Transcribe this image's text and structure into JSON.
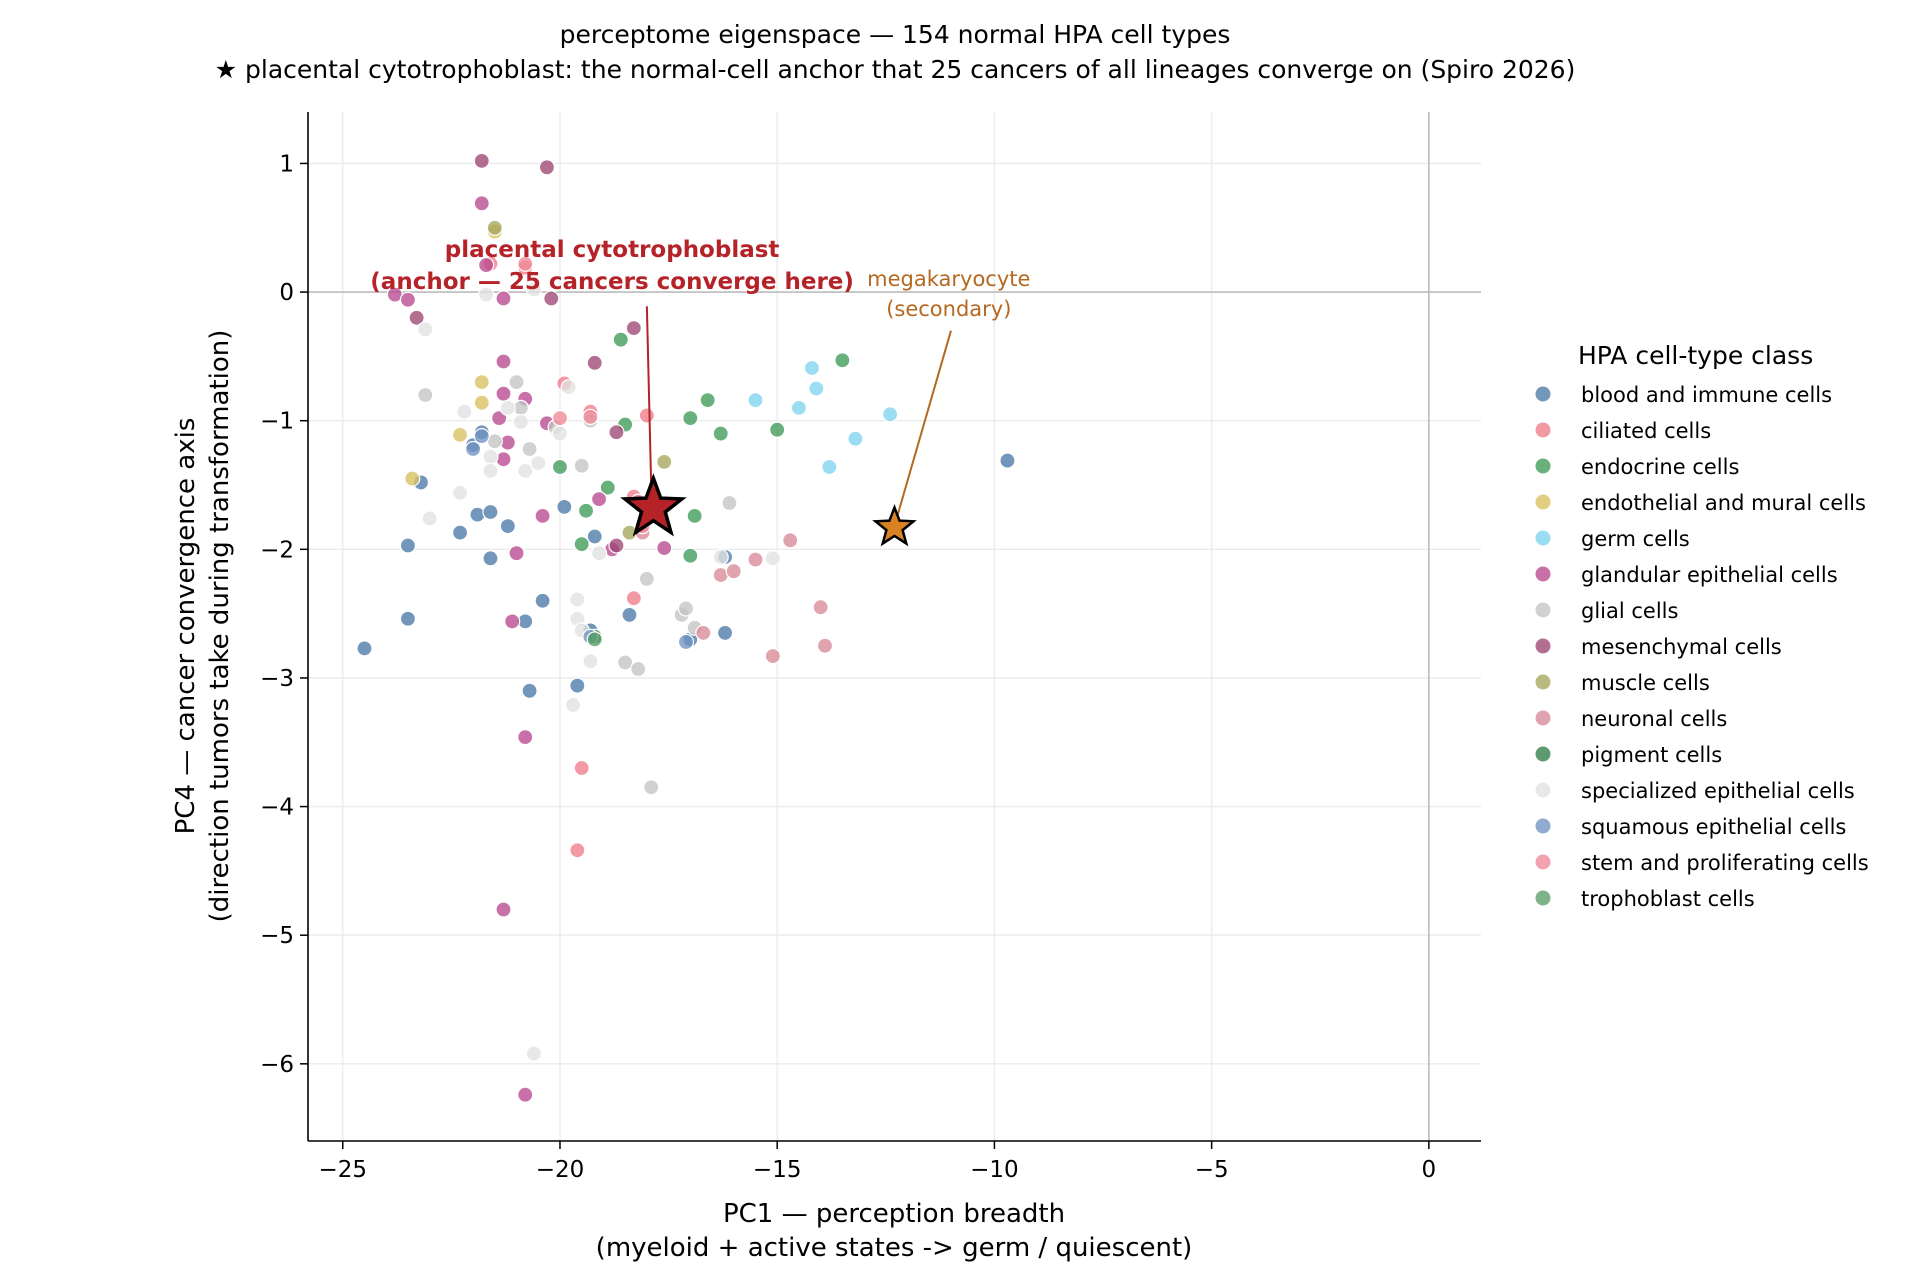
{
  "chart_data": {
    "type": "scatter",
    "title": "perceptome eigenspace — 154 normal HPA cell types",
    "subtitle": "★ placental cytotrophoblast: the normal-cell anchor that 25 cancers of all lineages converge on (Spiro 2026)",
    "xlabel": "PC1 — perception breadth",
    "xlabel2": "(myeloid + active states -> germ / quiescent)",
    "ylabel": "PC4 — cancer convergence axis",
    "ylabel2": "(direction tumors take during transformation)",
    "xlim": [
      -25.8,
      1.2
    ],
    "ylim": [
      -6.6,
      1.4
    ],
    "xticks": [
      -25,
      -20,
      -15,
      -10,
      -5,
      0
    ],
    "yticks": [
      -6,
      -5,
      -4,
      -3,
      -2,
      -1,
      0,
      1
    ],
    "xtick_labels": [
      "−25",
      "−20",
      "−15",
      "−10",
      "−5",
      "0"
    ],
    "ytick_labels": [
      "−6",
      "−5",
      "−4",
      "−3",
      "−2",
      "−1",
      "0",
      "1"
    ],
    "grid": true,
    "reference_lines": {
      "x": 0,
      "y": 0
    },
    "legend_title": "HPA cell-type class",
    "legend_position": "right",
    "series": [
      {
        "name": "blood and immune cells",
        "color": "#4c78a8",
        "points": [
          [
            -24.5,
            -2.77
          ],
          [
            -23.5,
            -1.97
          ],
          [
            -23.5,
            -2.54
          ],
          [
            -23.2,
            -1.48
          ],
          [
            -22.3,
            -1.87
          ],
          [
            -22.0,
            -1.19
          ],
          [
            -21.8,
            -1.09
          ],
          [
            -21.9,
            -1.73
          ],
          [
            -21.6,
            -1.71
          ],
          [
            -21.6,
            -2.07
          ],
          [
            -21.2,
            -1.82
          ],
          [
            -20.8,
            -2.56
          ],
          [
            -20.7,
            -3.1
          ],
          [
            -20.4,
            -2.4
          ],
          [
            -19.9,
            -1.67
          ],
          [
            -19.6,
            -3.06
          ],
          [
            -19.2,
            -1.9
          ],
          [
            -19.3,
            -2.63
          ],
          [
            -18.4,
            -2.51
          ],
          [
            -17.0,
            -2.7
          ],
          [
            -16.2,
            -2.65
          ],
          [
            -16.2,
            -2.06
          ],
          [
            -9.7,
            -1.31
          ]
        ]
      },
      {
        "name": "ciliated cells",
        "color": "#f07c8a",
        "points": [
          [
            -21.6,
            0.22
          ],
          [
            -20.8,
            0.19
          ],
          [
            -19.9,
            -0.71
          ],
          [
            -19.3,
            -0.93
          ],
          [
            -18.0,
            -0.96
          ],
          [
            -18.3,
            -1.59
          ],
          [
            -18.3,
            -2.38
          ],
          [
            -19.5,
            -3.7
          ],
          [
            -19.6,
            -4.34
          ]
        ]
      },
      {
        "name": "endocrine cells",
        "color": "#3d9a57",
        "points": [
          [
            -18.6,
            -0.37
          ],
          [
            -18.5,
            -1.03
          ],
          [
            -17.0,
            -0.98
          ],
          [
            -16.6,
            -0.84
          ],
          [
            -16.3,
            -1.1
          ],
          [
            -15.0,
            -1.07
          ],
          [
            -13.5,
            -0.53
          ],
          [
            -16.9,
            -1.74
          ],
          [
            -19.4,
            -1.7
          ],
          [
            -20.0,
            -1.36
          ],
          [
            -18.9,
            -1.52
          ],
          [
            -17.0,
            -2.05
          ],
          [
            -19.5,
            -1.96
          ]
        ]
      },
      {
        "name": "endothelial and mural cells",
        "color": "#d9c060",
        "points": [
          [
            -21.8,
            -0.7
          ],
          [
            -21.8,
            -0.86
          ],
          [
            -22.3,
            -1.11
          ],
          [
            -23.4,
            -1.45
          ],
          [
            -21.5,
            0.47
          ]
        ]
      },
      {
        "name": "germ cells",
        "color": "#7fd3f0",
        "points": [
          [
            -15.5,
            -0.84
          ],
          [
            -14.5,
            -0.9
          ],
          [
            -14.2,
            -0.59
          ],
          [
            -14.1,
            -0.75
          ],
          [
            -13.8,
            -1.36
          ],
          [
            -13.2,
            -1.14
          ],
          [
            -12.4,
            -0.95
          ]
        ]
      },
      {
        "name": "glandular epithelial cells",
        "color": "#b8498f",
        "points": [
          [
            -21.8,
            0.69
          ],
          [
            -21.7,
            0.21
          ],
          [
            -23.8,
            -0.02
          ],
          [
            -23.5,
            -0.06
          ],
          [
            -21.3,
            -0.05
          ],
          [
            -21.3,
            -0.54
          ],
          [
            -21.3,
            -0.79
          ],
          [
            -21.2,
            -1.17
          ],
          [
            -21.3,
            -1.3
          ],
          [
            -20.8,
            -0.83
          ],
          [
            -20.3,
            -1.02
          ],
          [
            -21.4,
            -0.98
          ],
          [
            -20.4,
            -1.74
          ],
          [
            -21.0,
            -2.03
          ],
          [
            -21.1,
            -2.56
          ],
          [
            -19.1,
            -1.61
          ],
          [
            -18.8,
            -2.0
          ],
          [
            -17.6,
            -1.99
          ],
          [
            -20.8,
            -3.46
          ],
          [
            -21.3,
            -4.8
          ],
          [
            -20.8,
            -6.24
          ]
        ]
      },
      {
        "name": "glial cells",
        "color": "#c4c4c4",
        "points": [
          [
            -23.1,
            -0.8
          ],
          [
            -21.0,
            -0.7
          ],
          [
            -20.9,
            -0.9
          ],
          [
            -20.7,
            -1.22
          ],
          [
            -21.5,
            -1.16
          ],
          [
            -20.1,
            -1.05
          ],
          [
            -19.3,
            -1.0
          ],
          [
            -19.5,
            -1.35
          ],
          [
            -18.0,
            -2.23
          ],
          [
            -18.5,
            -2.88
          ],
          [
            -18.2,
            -2.93
          ],
          [
            -17.2,
            -2.51
          ],
          [
            -17.1,
            -2.46
          ],
          [
            -16.9,
            -2.61
          ],
          [
            -16.1,
            -1.64
          ],
          [
            -17.9,
            -3.85
          ]
        ]
      },
      {
        "name": "mesenchymal cells",
        "color": "#9e4773",
        "points": [
          [
            -21.8,
            1.02
          ],
          [
            -20.3,
            0.97
          ],
          [
            -23.3,
            -0.2
          ],
          [
            -20.2,
            -0.05
          ],
          [
            -18.3,
            -0.28
          ],
          [
            -19.2,
            -0.55
          ],
          [
            -18.7,
            -1.09
          ],
          [
            -18.7,
            -1.97
          ]
        ]
      },
      {
        "name": "muscle cells",
        "color": "#a7a55c",
        "points": [
          [
            -21.5,
            0.5
          ],
          [
            -17.6,
            -1.32
          ],
          [
            -18.4,
            -1.87
          ]
        ]
      },
      {
        "name": "neuronal cells",
        "color": "#d98a98",
        "points": [
          [
            -16.3,
            -2.2
          ],
          [
            -16.0,
            -2.17
          ],
          [
            -15.5,
            -2.08
          ],
          [
            -14.7,
            -1.93
          ],
          [
            -14.0,
            -2.45
          ],
          [
            -13.9,
            -2.75
          ],
          [
            -15.1,
            -2.83
          ],
          [
            -16.7,
            -2.65
          ],
          [
            -18.1,
            -1.87
          ]
        ]
      },
      {
        "name": "pigment cells",
        "color": "#2e7d48",
        "points": [
          [
            -19.2,
            -2.68
          ]
        ]
      },
      {
        "name": "specialized epithelial cells",
        "color": "#e2e2e2",
        "points": [
          [
            -21.7,
            -0.02
          ],
          [
            -20.6,
            0.02
          ],
          [
            -23.1,
            -0.29
          ],
          [
            -22.2,
            -0.93
          ],
          [
            -21.6,
            -1.28
          ],
          [
            -21.6,
            -1.39
          ],
          [
            -22.3,
            -1.56
          ],
          [
            -23.0,
            -1.76
          ],
          [
            -20.8,
            -1.39
          ],
          [
            -20.5,
            -1.33
          ],
          [
            -19.6,
            -2.39
          ],
          [
            -19.6,
            -2.54
          ],
          [
            -19.5,
            -2.63
          ],
          [
            -19.3,
            -2.87
          ],
          [
            -19.1,
            -2.03
          ],
          [
            -19.7,
            -3.21
          ],
          [
            -20.6,
            -5.92
          ],
          [
            -15.1,
            -2.07
          ],
          [
            -16.3,
            -2.06
          ],
          [
            -19.8,
            -0.74
          ],
          [
            -20.0,
            -1.1
          ],
          [
            -20.9,
            -1.01
          ],
          [
            -21.2,
            -0.9
          ]
        ]
      },
      {
        "name": "squamous epithelial cells",
        "color": "#6f93c0",
        "points": [
          [
            -21.8,
            -1.12
          ],
          [
            -22.0,
            -1.22
          ],
          [
            -19.3,
            -2.68
          ],
          [
            -17.1,
            -2.72
          ]
        ]
      },
      {
        "name": "stem and proliferating cells",
        "color": "#f08898",
        "points": [
          [
            -20.8,
            0.22
          ],
          [
            -20.0,
            -0.98
          ],
          [
            -18.2,
            -1.63
          ],
          [
            -18.1,
            -1.82
          ],
          [
            -19.3,
            -0.97
          ]
        ]
      },
      {
        "name": "trophoblast cells",
        "color": "#5a9e68",
        "points": [
          [
            -19.2,
            -2.7
          ]
        ]
      }
    ],
    "highlights": [
      {
        "name": "placental cytotrophoblast",
        "x": -17.85,
        "y": -1.68,
        "color": "#b52228",
        "label_line1": "placental cytotrophoblast",
        "label_line2": "(anchor — 25 cancers converge here)",
        "label_x": -18.8,
        "label_y": 0.07
      },
      {
        "name": "megakaryocyte",
        "x": -12.3,
        "y": -1.83,
        "color": "#d98224",
        "label_line1": "megakaryocyte",
        "label_line2": "(secondary)",
        "label_x": -11.05,
        "label_y": -0.17
      }
    ]
  }
}
